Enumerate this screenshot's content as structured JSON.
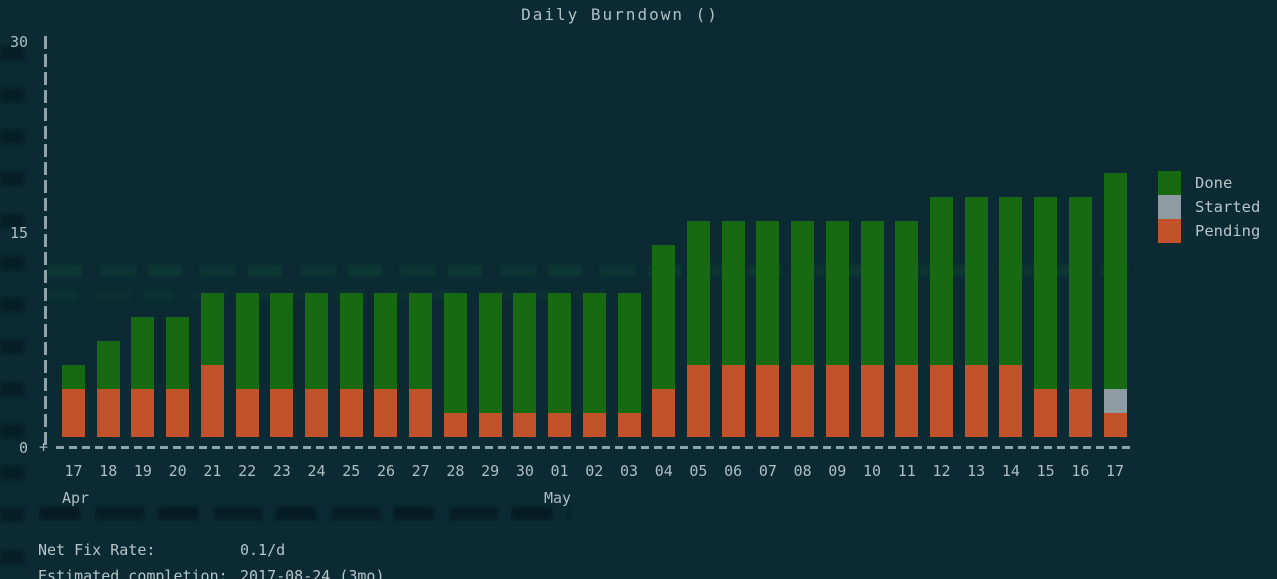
{
  "title": "Daily Burndown ()",
  "y_axis": {
    "ticks": [
      "30",
      "15",
      "0"
    ],
    "origin_glyph": "+"
  },
  "x_axis": {
    "months": [
      {
        "label": "Apr",
        "at_category_index": 0
      },
      {
        "label": "May",
        "at_category_index": 14
      }
    ]
  },
  "stats": {
    "rows": [
      {
        "label": "Net Fix Rate:",
        "value": "0.1/d"
      },
      {
        "label": "Estimated completion:",
        "value": "2017-08-24 (3mo)"
      }
    ]
  },
  "colors": {
    "background": "#0b2a33",
    "text": "#b7c6ca",
    "axis": "#9cb2b8",
    "done": "#176a12",
    "started": "#8d9ca3",
    "pending": "#c2522a"
  },
  "chart_data": {
    "type": "bar",
    "stacked": true,
    "title": "Daily Burndown ()",
    "xlabel": "",
    "ylabel": "",
    "ylim": [
      0,
      30
    ],
    "y_ticks": [
      0,
      15,
      30
    ],
    "grid": false,
    "legend_position": "right",
    "categories": [
      "17",
      "18",
      "19",
      "20",
      "21",
      "22",
      "23",
      "24",
      "25",
      "26",
      "27",
      "28",
      "29",
      "30",
      "01",
      "02",
      "03",
      "04",
      "05",
      "06",
      "07",
      "08",
      "09",
      "10",
      "11",
      "12",
      "13",
      "14",
      "15",
      "16",
      "17"
    ],
    "month_markers": [
      {
        "index": 0,
        "label": "Apr"
      },
      {
        "index": 14,
        "label": "May"
      }
    ],
    "series": [
      {
        "name": "Pending",
        "color": "#c2522a",
        "values": [
          4,
          4,
          4,
          4,
          6,
          4,
          4,
          4,
          4,
          4,
          4,
          2,
          2,
          2,
          2,
          2,
          2,
          4,
          6,
          6,
          6,
          6,
          6,
          6,
          6,
          6,
          6,
          6,
          4,
          4,
          2
        ]
      },
      {
        "name": "Started",
        "color": "#8d9ca3",
        "values": [
          0,
          0,
          0,
          0,
          0,
          0,
          0,
          0,
          0,
          0,
          0,
          0,
          0,
          0,
          0,
          0,
          0,
          0,
          0,
          0,
          0,
          0,
          0,
          0,
          0,
          0,
          0,
          0,
          0,
          0,
          2
        ]
      },
      {
        "name": "Done",
        "color": "#176a12",
        "values": [
          2,
          4,
          6,
          6,
          6,
          8,
          8,
          8,
          8,
          8,
          8,
          10,
          10,
          10,
          10,
          10,
          10,
          12,
          12,
          12,
          12,
          12,
          12,
          12,
          12,
          14,
          14,
          14,
          16,
          16,
          18
        ]
      }
    ]
  }
}
